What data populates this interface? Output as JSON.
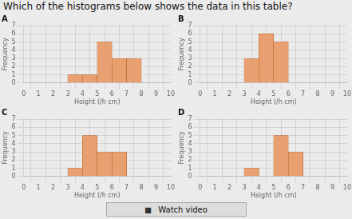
{
  "title": "Which of the histograms below shows the data in this table?",
  "annotations": [
    "◼",
    "Watch video"
  ],
  "chart_data": [
    {
      "type": "histogram",
      "title": "A",
      "xlabel": "Height (/h cm)",
      "ylabel": "Frequency",
      "bins": [
        3,
        4,
        5,
        6,
        7,
        8
      ],
      "values": [
        1,
        1,
        5,
        3,
        3
      ],
      "color": "#e8a070",
      "xlim": [
        0,
        10
      ],
      "xticks": [
        0,
        1,
        2,
        3,
        4,
        5,
        6,
        7,
        8,
        9,
        10
      ],
      "ylim": [
        0,
        7
      ],
      "yticks": [
        0,
        1,
        2,
        3,
        4,
        5,
        6,
        7
      ],
      "grid": true
    },
    {
      "type": "histogram",
      "title": "B",
      "xlabel": "Height (/h cm)",
      "ylabel": "Frequency",
      "bins": [
        3,
        4,
        5,
        6
      ],
      "values": [
        3,
        6,
        5
      ],
      "color": "#e8a070",
      "xlim": [
        0,
        10
      ],
      "xticks": [
        0,
        1,
        2,
        3,
        4,
        5,
        6,
        7,
        8,
        9,
        10
      ],
      "ylim": [
        0,
        7
      ],
      "yticks": [
        0,
        1,
        2,
        3,
        4,
        5,
        6,
        7
      ],
      "grid": true
    },
    {
      "type": "histogram",
      "title": "C",
      "xlabel": "Height (/h cm)",
      "ylabel": "Frequency",
      "bins": [
        3,
        4,
        5,
        6,
        7
      ],
      "values": [
        1,
        5,
        3,
        3
      ],
      "color": "#e8a070",
      "xlim": [
        0,
        10
      ],
      "xticks": [
        0,
        1,
        2,
        3,
        4,
        5,
        6,
        7,
        8,
        9,
        10
      ],
      "ylim": [
        0,
        7
      ],
      "yticks": [
        0,
        1,
        2,
        3,
        4,
        5,
        6,
        7
      ],
      "grid": true
    },
    {
      "type": "histogram",
      "title": "D",
      "xlabel": "Height (/h cm)",
      "ylabel": "Frequency",
      "bins": [
        3,
        4,
        5,
        6,
        7
      ],
      "values": [
        1,
        0,
        5,
        3
      ],
      "color": "#e8a070",
      "xlim": [
        0,
        10
      ],
      "xticks": [
        0,
        1,
        2,
        3,
        4,
        5,
        6,
        7,
        8,
        9,
        10
      ],
      "ylim": [
        0,
        7
      ],
      "yticks": [
        0,
        1,
        2,
        3,
        4,
        5,
        6,
        7
      ],
      "grid": true
    }
  ]
}
